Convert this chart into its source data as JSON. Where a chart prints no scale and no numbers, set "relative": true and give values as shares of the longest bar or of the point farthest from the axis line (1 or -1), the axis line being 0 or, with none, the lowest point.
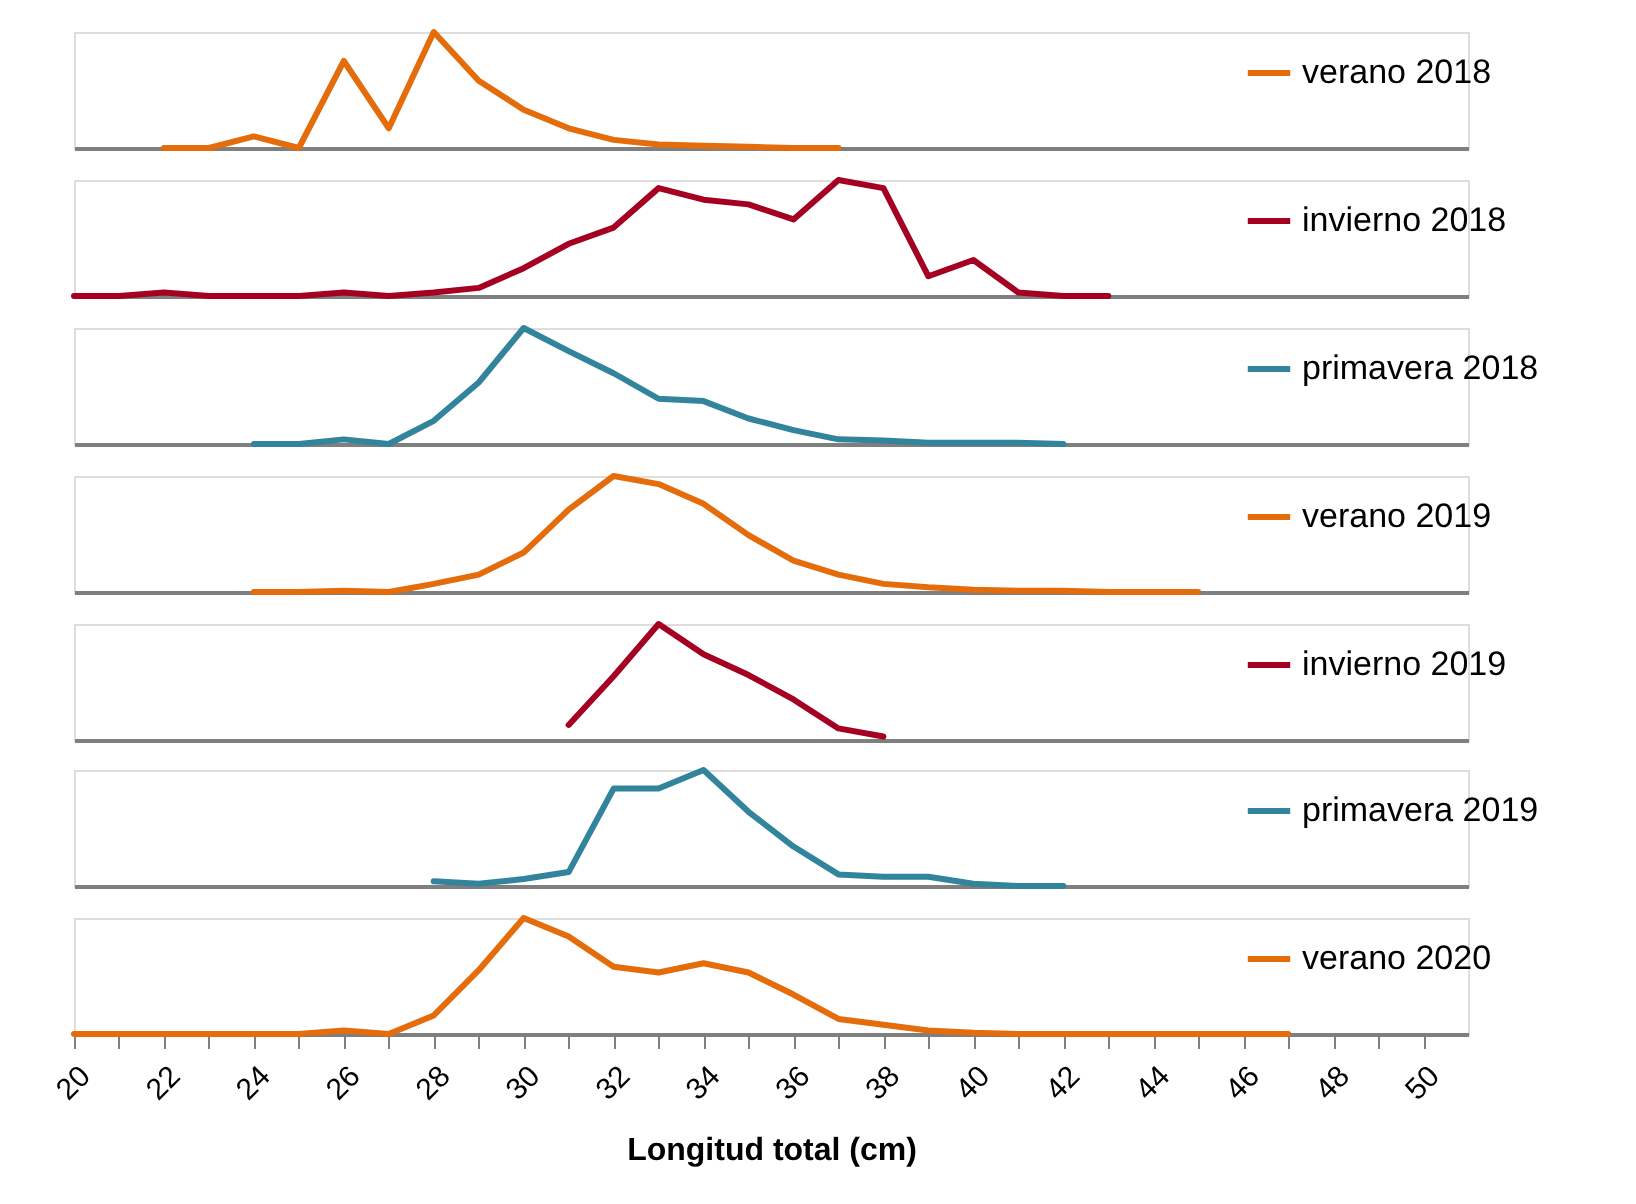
{
  "chart_data": [
    {
      "type": "line",
      "relative": true,
      "xlim": [
        20,
        51
      ],
      "tick_labels": false,
      "legend": "right",
      "series": [
        {
          "name": "verano 2018",
          "color": "#e46c0a",
          "x": [
            22,
            23,
            24,
            25,
            26,
            27,
            28,
            29,
            30,
            31,
            32,
            33,
            34,
            35,
            36,
            37
          ],
          "values": [
            0,
            0,
            0.1,
            0,
            0.75,
            0.17,
            1,
            0.58,
            0.33,
            0.17,
            0.07,
            0.03,
            0.02,
            0.01,
            0,
            0
          ]
        }
      ]
    },
    {
      "type": "line",
      "relative": true,
      "xlim": [
        20,
        51
      ],
      "tick_labels": false,
      "legend": "right",
      "series": [
        {
          "name": "invierno 2018",
          "color": "#a50021",
          "x": [
            20,
            21,
            22,
            23,
            24,
            25,
            26,
            27,
            28,
            29,
            30,
            31,
            32,
            33,
            34,
            35,
            36,
            37,
            38,
            39,
            40,
            41,
            42,
            43
          ],
          "values": [
            0,
            0,
            0.03,
            0,
            0,
            0,
            0.03,
            0,
            0.03,
            0.07,
            0.24,
            0.45,
            0.59,
            0.93,
            0.83,
            0.79,
            0.66,
            1,
            0.93,
            0.17,
            0.31,
            0.03,
            0,
            0
          ]
        }
      ]
    },
    {
      "type": "line",
      "relative": true,
      "xlim": [
        20,
        51
      ],
      "tick_labels": false,
      "legend": "right",
      "series": [
        {
          "name": "primavera 2018",
          "color": "#31849b",
          "x": [
            24,
            25,
            26,
            27,
            28,
            29,
            30,
            31,
            32,
            33,
            34,
            35,
            36,
            37,
            38,
            39,
            40,
            41,
            42
          ],
          "values": [
            0,
            0,
            0.04,
            0,
            0.2,
            0.53,
            1,
            0.8,
            0.61,
            0.39,
            0.37,
            0.22,
            0.12,
            0.04,
            0.03,
            0.01,
            0.01,
            0.01,
            0
          ]
        }
      ]
    },
    {
      "type": "line",
      "relative": true,
      "xlim": [
        20,
        51
      ],
      "tick_labels": false,
      "legend": "right",
      "series": [
        {
          "name": "verano 2019",
          "color": "#e46c0a",
          "x": [
            24,
            25,
            26,
            27,
            28,
            29,
            30,
            31,
            32,
            33,
            34,
            35,
            36,
            37,
            38,
            39,
            40,
            41,
            42,
            43,
            44,
            45
          ],
          "values": [
            0,
            0,
            0.01,
            0,
            0.07,
            0.15,
            0.34,
            0.71,
            1,
            0.93,
            0.76,
            0.49,
            0.27,
            0.15,
            0.07,
            0.04,
            0.02,
            0.01,
            0.01,
            0,
            0,
            0
          ]
        }
      ]
    },
    {
      "type": "line",
      "relative": true,
      "xlim": [
        20,
        51
      ],
      "tick_labels": false,
      "legend": "right",
      "series": [
        {
          "name": "invierno 2019",
          "color": "#a50021",
          "x": [
            31,
            32,
            33,
            34,
            35,
            36,
            37,
            38
          ],
          "values": [
            0.13,
            0.55,
            1,
            0.74,
            0.56,
            0.35,
            0.1,
            0.03
          ]
        }
      ]
    },
    {
      "type": "line",
      "relative": true,
      "xlim": [
        20,
        51
      ],
      "tick_labels": false,
      "legend": "right",
      "series": [
        {
          "name": "primavera 2019",
          "color": "#31849b",
          "x": [
            28,
            29,
            30,
            31,
            32,
            33,
            34,
            35,
            36,
            37,
            38,
            39,
            40,
            41,
            42
          ],
          "values": [
            0.04,
            0.02,
            0.06,
            0.12,
            0.84,
            0.84,
            1,
            0.64,
            0.34,
            0.1,
            0.08,
            0.08,
            0.02,
            0,
            0
          ]
        }
      ]
    },
    {
      "type": "line",
      "relative": true,
      "xlim": [
        20,
        51
      ],
      "tick_labels": "x",
      "legend": "right",
      "xlabel": "Longitud total (cm)",
      "xticks": [
        20,
        {
          "value": 21,
          "label": null
        },
        22,
        {
          "value": 23,
          "label": null
        },
        24,
        {
          "value": 25,
          "label": null
        },
        26,
        {
          "value": 27,
          "label": null
        },
        28,
        {
          "value": 29,
          "label": null
        },
        30,
        {
          "value": 31,
          "label": null
        },
        32,
        {
          "value": 33,
          "label": null
        },
        34,
        {
          "value": 35,
          "label": null
        },
        36,
        {
          "value": 37,
          "label": null
        },
        38,
        {
          "value": 39,
          "label": null
        },
        40,
        {
          "value": 41,
          "label": null
        },
        42,
        {
          "value": 43,
          "label": null
        },
        44,
        {
          "value": 45,
          "label": null
        },
        46,
        {
          "value": 47,
          "label": null
        },
        48,
        {
          "value": 49,
          "label": null
        },
        50
      ],
      "series": [
        {
          "name": "verano 2020",
          "color": "#e46c0a",
          "x": [
            20,
            21,
            22,
            23,
            24,
            25,
            26,
            27,
            28,
            29,
            30,
            31,
            32,
            33,
            34,
            35,
            36,
            37,
            38,
            39,
            40,
            41,
            42,
            43,
            44,
            45,
            46,
            47
          ],
          "values": [
            0,
            0,
            0,
            0,
            0,
            0,
            0.03,
            0,
            0.16,
            0.55,
            1,
            0.84,
            0.58,
            0.53,
            0.61,
            0.53,
            0.34,
            0.13,
            0.08,
            0.03,
            0.01,
            0,
            0,
            0,
            0,
            0,
            0,
            0
          ]
        }
      ]
    }
  ]
}
